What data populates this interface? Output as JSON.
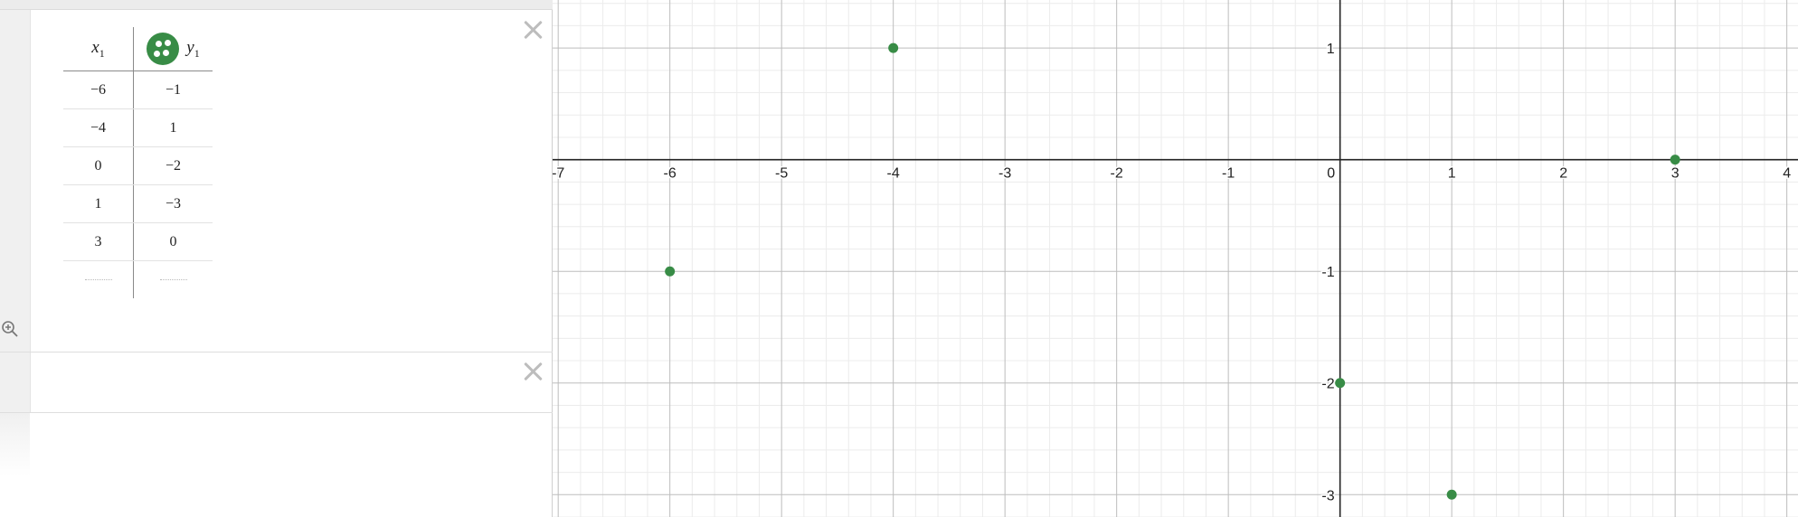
{
  "table": {
    "x_header": {
      "var": "x",
      "sub": "1"
    },
    "y_header": {
      "var": "y",
      "sub": "1"
    },
    "series_color": "#388c46",
    "rows": [
      {
        "x": "−6",
        "y": "−1"
      },
      {
        "x": "−4",
        "y": "1"
      },
      {
        "x": "0",
        "y": "−2"
      },
      {
        "x": "1",
        "y": "−3"
      },
      {
        "x": "3",
        "y": "0"
      }
    ]
  },
  "icons": {
    "close": "close-icon",
    "zoom": "zoom-in-icon",
    "color": "point-style-icon"
  },
  "chart_data": {
    "type": "scatter",
    "x": [
      -6,
      -4,
      0,
      1,
      3
    ],
    "y": [
      -1,
      1,
      -2,
      -3,
      0
    ],
    "xlim": [
      -7.05,
      4.1
    ],
    "ylim": [
      -3.2,
      1.43
    ],
    "x_ticks": [
      "-7",
      "-6",
      "-5",
      "-4",
      "-3",
      "-2",
      "-1",
      "0",
      "1",
      "2",
      "3",
      "4"
    ],
    "y_ticks": [
      "1",
      "-1",
      "-2",
      "-3"
    ],
    "grid": true,
    "point_color": "#388c46"
  }
}
